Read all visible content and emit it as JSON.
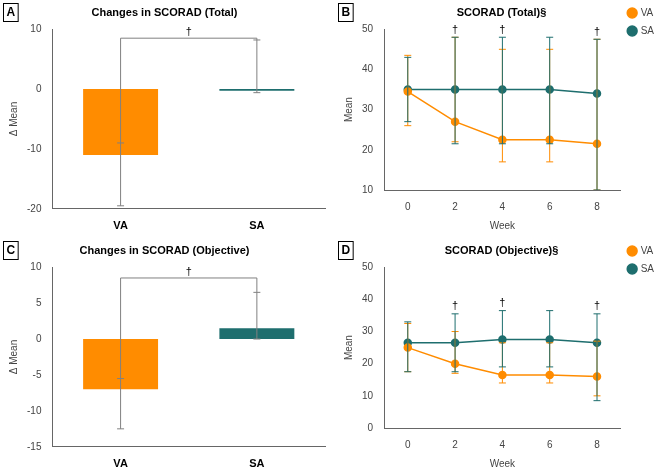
{
  "chart_data": [
    {
      "type": "bar",
      "panel_label": "A",
      "title": "Changes in SCORAD (Total)",
      "ylabel": "Δ Mean",
      "categories": [
        "VA",
        "SA"
      ],
      "values": [
        -11.0,
        -0.3
      ],
      "errors_upper": [
        2.0,
        8.5
      ],
      "errors_lower": [
        8.5,
        0.3
      ],
      "colors": [
        "#FF8C00",
        "#1E6E6E"
      ],
      "ylim": [
        -20,
        10
      ],
      "yticks": [
        -20,
        -10,
        0,
        10
      ],
      "grid": false,
      "bracket": {
        "from": "VA",
        "to": "SA",
        "y": 8.5,
        "text": "†"
      }
    },
    {
      "type": "line",
      "panel_label": "B",
      "title": "SCORAD (Total)§",
      "xlabel": "Week",
      "ylabel": "Mean",
      "x": [
        0,
        2,
        4,
        6,
        8
      ],
      "xlim": [
        -1,
        9
      ],
      "xticks": [
        0,
        2,
        4,
        6,
        8
      ],
      "ylim": [
        10,
        50
      ],
      "yticks": [
        10,
        20,
        30,
        40,
        50
      ],
      "grid": false,
      "legend": "upper right",
      "marker": "circle",
      "series": [
        {
          "name": "VA",
          "color": "#FF8C00",
          "values": [
            34.5,
            27.0,
            22.5,
            22.5,
            21.5
          ],
          "errors_upper": [
            9.0,
            21.0,
            22.5,
            22.5,
            26.0
          ],
          "errors_lower": [
            8.5,
            5.0,
            5.5,
            5.5,
            11.5
          ]
        },
        {
          "name": "SA",
          "color": "#1E6E6E",
          "values": [
            35.0,
            35.0,
            35.0,
            35.0,
            34.0
          ],
          "errors_upper": [
            8.0,
            13.0,
            13.0,
            13.0,
            13.5
          ],
          "errors_lower": [
            8.0,
            13.5,
            13.5,
            13.5,
            24.0
          ]
        }
      ],
      "annotations": [
        {
          "text": "†",
          "x": 2
        },
        {
          "text": "†",
          "x": 4
        },
        {
          "text": "†",
          "x": 8
        }
      ]
    },
    {
      "type": "bar",
      "panel_label": "C",
      "title": "Changes in SCORAD (Objective)",
      "ylabel": "Δ Mean",
      "categories": [
        "VA",
        "SA"
      ],
      "values": [
        -7.0,
        1.5
      ],
      "errors_upper": [
        1.5,
        5.0
      ],
      "errors_lower": [
        5.5,
        1.5
      ],
      "colors": [
        "#FF8C00",
        "#1E6E6E"
      ],
      "ylim": [
        -15,
        10
      ],
      "yticks": [
        -15,
        -10,
        -5,
        0,
        5,
        10
      ],
      "grid": false,
      "bracket": {
        "from": "VA",
        "to": "SA",
        "y": 8.5,
        "text": "†"
      }
    },
    {
      "type": "line",
      "panel_label": "D",
      "title": "SCORAD (Objective)§",
      "xlabel": "Week",
      "ylabel": "Mean",
      "x": [
        0,
        2,
        4,
        6,
        8
      ],
      "xlim": [
        -1,
        9
      ],
      "xticks": [
        0,
        2,
        4,
        6,
        8
      ],
      "ylim": [
        0,
        50
      ],
      "yticks": [
        0,
        10,
        20,
        30,
        40,
        50
      ],
      "grid": false,
      "legend": "upper right",
      "marker": "circle",
      "series": [
        {
          "name": "VA",
          "color": "#FF8C00",
          "values": [
            25.0,
            20.0,
            16.5,
            16.5,
            16.0
          ],
          "errors_upper": [
            7.5,
            10.0,
            10.0,
            10.0,
            11.0
          ],
          "errors_lower": [
            7.5,
            3.0,
            2.5,
            2.5,
            6.0
          ]
        },
        {
          "name": "SA",
          "color": "#1E6E6E",
          "values": [
            26.5,
            26.5,
            27.5,
            27.5,
            26.5
          ],
          "errors_upper": [
            6.5,
            9.0,
            9.0,
            9.0,
            9.0
          ],
          "errors_lower": [
            9.0,
            9.0,
            8.5,
            8.5,
            18.0
          ]
        }
      ],
      "annotations": [
        {
          "text": "†",
          "x": 2
        },
        {
          "text": "†",
          "x": 4
        },
        {
          "text": "†",
          "x": 8
        }
      ]
    }
  ]
}
